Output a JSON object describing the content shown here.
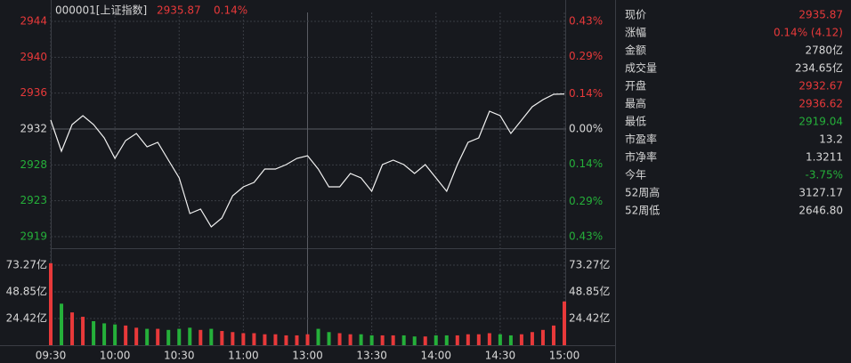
{
  "chart_data": {
    "type": "intraday",
    "header": {
      "name": "000001[上证指数]",
      "price": "2935.87",
      "change": "0.14%"
    },
    "xlim": [
      0,
      240
    ],
    "xticks": [
      {
        "value": 0,
        "label": "09:30"
      },
      {
        "value": 30,
        "label": "10:00"
      },
      {
        "value": 60,
        "label": "10:30"
      },
      {
        "value": 90,
        "label": "11:00"
      },
      {
        "value": 120,
        "label": "13:00"
      },
      {
        "value": 150,
        "label": "13:30"
      },
      {
        "value": 180,
        "label": "14:00"
      },
      {
        "value": 210,
        "label": "14:30"
      },
      {
        "value": 240,
        "label": "15:00"
      }
    ],
    "ylim": [
      2919.17,
      2944.37
    ],
    "yticks": [
      {
        "value": 2944.37,
        "label": "2944"
      },
      {
        "value": 2940.17,
        "label": "2940"
      },
      {
        "value": 2935.97,
        "label": "2936"
      },
      {
        "value": 2931.77,
        "label": "2932"
      },
      {
        "value": 2927.57,
        "label": "2928"
      },
      {
        "value": 2923.37,
        "label": "2923"
      },
      {
        "value": 2919.17,
        "label": "2919"
      }
    ],
    "ytick_colors": [
      "#e8393a",
      "#e8393a",
      "#e8393a",
      "#d8d8d8",
      "#25b03a",
      "#25b03a",
      "#25b03a"
    ],
    "y2lim": [
      -0.43,
      0.43
    ],
    "y2ticks": [
      {
        "value": 0.43,
        "label": "0.43%"
      },
      {
        "value": 0.29,
        "label": "0.29%"
      },
      {
        "value": 0.14,
        "label": "0.14%"
      },
      {
        "value": 0,
        "label": "0.00%"
      },
      {
        "value": -0.14,
        "label": "0.14%"
      },
      {
        "value": -0.29,
        "label": "0.29%"
      },
      {
        "value": -0.43,
        "label": "0.43%"
      }
    ],
    "vol_ylim": [
      0,
      97.7
    ],
    "vol_ticks": [
      {
        "value": 24.42,
        "label": "24.42亿"
      },
      {
        "value": 48.85,
        "label": "48.85亿"
      },
      {
        "value": 73.27,
        "label": "73.27亿"
      }
    ],
    "x": [
      0,
      5,
      10,
      15,
      20,
      25,
      30,
      35,
      40,
      45,
      50,
      55,
      60,
      65,
      70,
      75,
      80,
      85,
      90,
      95,
      100,
      105,
      110,
      115,
      120,
      125,
      130,
      135,
      140,
      145,
      150,
      155,
      160,
      165,
      170,
      175,
      180,
      185,
      190,
      195,
      200,
      205,
      210,
      215,
      220,
      225,
      230,
      235,
      240
    ],
    "price": {
      "color": "#f2f2f2",
      "values": [
        2932.81,
        2929.17,
        2932.29,
        2933.33,
        2932.29,
        2930.73,
        2928.33,
        2930.42,
        2931.25,
        2929.69,
        2930.21,
        2928.13,
        2926.04,
        2921.88,
        2922.4,
        2920.32,
        2921.36,
        2923.96,
        2925.0,
        2925.52,
        2927.08,
        2927.08,
        2927.6,
        2928.33,
        2928.65,
        2927.08,
        2925.0,
        2925.0,
        2926.56,
        2926.04,
        2924.48,
        2927.6,
        2928.13,
        2927.6,
        2926.56,
        2927.6,
        2926.04,
        2924.48,
        2927.6,
        2930.21,
        2930.73,
        2933.85,
        2933.33,
        2931.25,
        2932.81,
        2934.37,
        2935.21,
        2935.83,
        2935.87
      ]
    },
    "volume": {
      "up_color": "#e8393a",
      "down_color": "#25b03a",
      "values": [
        75,
        38,
        30,
        26,
        22,
        20,
        19,
        18,
        16,
        15,
        15,
        14,
        15,
        16,
        14,
        15,
        13,
        12,
        11,
        11,
        10,
        10,
        9,
        9,
        10,
        15,
        12,
        11,
        10,
        10,
        9,
        9,
        9,
        9,
        8,
        8,
        9,
        9,
        9,
        10,
        10,
        11,
        10,
        9,
        10,
        12,
        14,
        18,
        40
      ]
    },
    "quote": [
      {
        "label": "现价",
        "value": "2935.87",
        "color": "#e8393a"
      },
      {
        "label": "涨幅",
        "value": "0.14% (4.12)",
        "color": "#e8393a"
      },
      {
        "label": "金额",
        "value": "2780亿",
        "color": "#d8d8d8"
      },
      {
        "label": "成交量",
        "value": "234.65亿",
        "color": "#d8d8d8"
      },
      {
        "label": "开盘",
        "value": "2932.67",
        "color": "#e8393a"
      },
      {
        "label": "最高",
        "value": "2936.62",
        "color": "#e8393a"
      },
      {
        "label": "最低",
        "value": "2919.04",
        "color": "#25b03a"
      },
      {
        "label": "市盈率",
        "value": "13.2",
        "color": "#d8d8d8"
      },
      {
        "label": "市净率",
        "value": "1.3211",
        "color": "#d8d8d8"
      },
      {
        "label": "今年",
        "value": "-3.75%",
        "color": "#25b03a"
      },
      {
        "label": "52周高",
        "value": "3127.17",
        "color": "#d8d8d8"
      },
      {
        "label": "52周低",
        "value": "2646.80",
        "color": "#d8d8d8"
      }
    ]
  }
}
